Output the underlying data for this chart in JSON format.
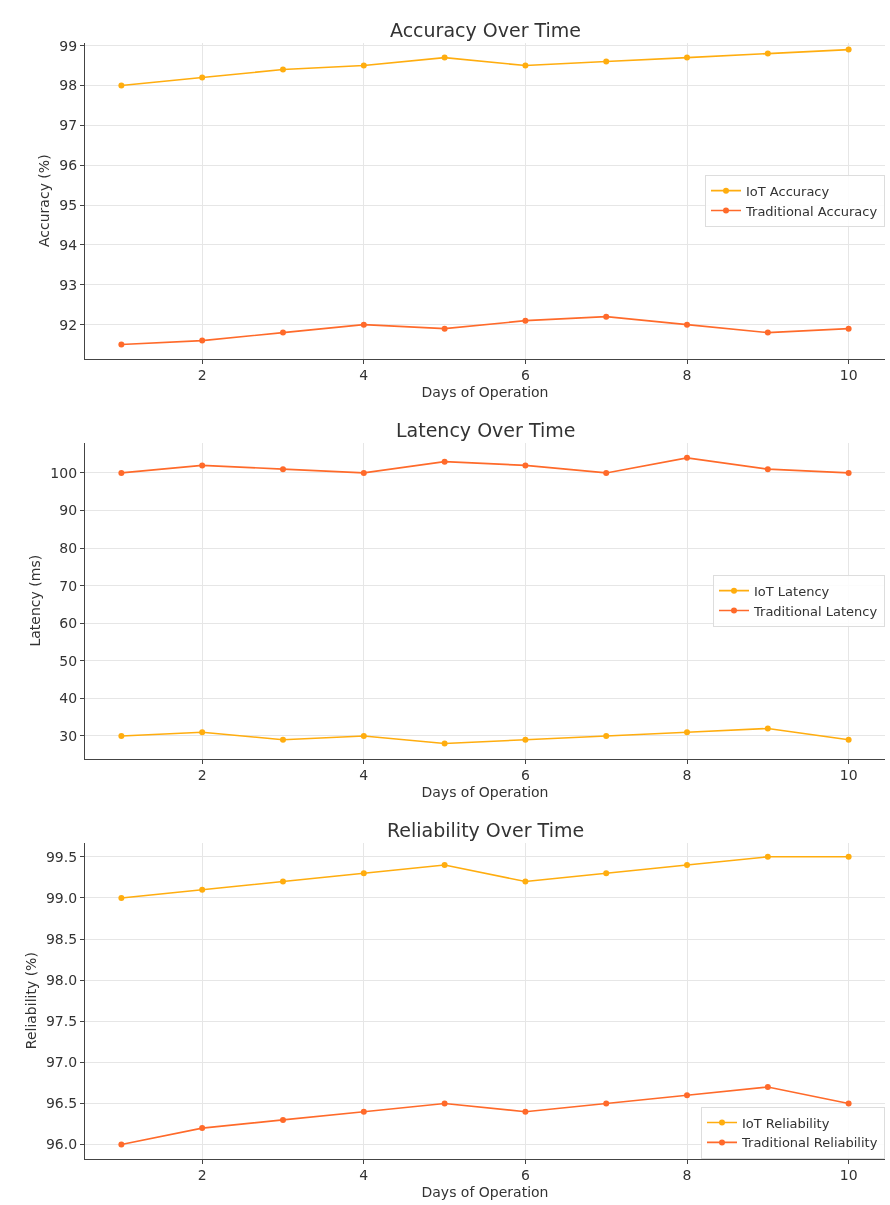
{
  "chart_data": [
    {
      "type": "line",
      "title": "Accuracy Over Time",
      "xlabel": "Days of Operation",
      "ylabel": "Accuracy (%)",
      "x": [
        1,
        2,
        3,
        4,
        5,
        6,
        7,
        8,
        9,
        10
      ],
      "xlim": [
        0.55,
        10.45
      ],
      "xticks": [
        2,
        4,
        6,
        8,
        10
      ],
      "ylim": [
        91.15,
        99.07
      ],
      "yticks": [
        92,
        93,
        94,
        95,
        96,
        97,
        98,
        99
      ],
      "grid": true,
      "legend": "right",
      "marker": "circle",
      "line_style": "solid",
      "series": [
        {
          "name": "IoT Accuracy",
          "color": "#ffad0f",
          "values": [
            98.0,
            98.2,
            98.4,
            98.5,
            98.7,
            98.5,
            98.6,
            98.7,
            98.8,
            98.9
          ]
        },
        {
          "name": "Traditional Accuracy",
          "color": "#ff6a2a",
          "values": [
            91.5,
            91.6,
            91.8,
            92.0,
            91.9,
            92.1,
            92.2,
            92.0,
            91.8,
            91.9
          ]
        }
      ]
    },
    {
      "type": "line",
      "title": "Latency Over Time",
      "xlabel": "Days of Operation",
      "ylabel": "Latency (ms)",
      "x": [
        1,
        2,
        3,
        4,
        5,
        6,
        7,
        8,
        9,
        10
      ],
      "xlim": [
        0.55,
        10.45
      ],
      "xticks": [
        2,
        4,
        6,
        8,
        10
      ],
      "ylim": [
        24,
        108
      ],
      "yticks": [
        30,
        40,
        50,
        60,
        70,
        80,
        90,
        100
      ],
      "grid": true,
      "legend": "right",
      "marker": "circle",
      "line_style": "solid",
      "series": [
        {
          "name": "IoT Latency",
          "color": "#ffad0f",
          "values": [
            30,
            31,
            29,
            30,
            28,
            29,
            30,
            31,
            32,
            29
          ]
        },
        {
          "name": "Traditional Latency",
          "color": "#ff6a2a",
          "values": [
            100,
            102,
            101,
            100,
            103,
            102,
            100,
            104,
            101,
            100
          ]
        }
      ]
    },
    {
      "type": "line",
      "title": "Reliability Over Time",
      "xlabel": "Days of Operation",
      "ylabel": "Reliability (%)",
      "x": [
        1,
        2,
        3,
        4,
        5,
        6,
        7,
        8,
        9,
        10
      ],
      "xlim": [
        0.55,
        10.45
      ],
      "xticks": [
        2,
        4,
        6,
        8,
        10
      ],
      "ylim": [
        95.83,
        99.67
      ],
      "yticks": [
        {
          "value": 96,
          "label": "96.0"
        },
        {
          "value": 96.5,
          "label": "96.5"
        },
        {
          "value": 97,
          "label": "97.0"
        },
        {
          "value": 97.5,
          "label": "97.5"
        },
        {
          "value": 98,
          "label": "98.0"
        },
        {
          "value": 98.5,
          "label": "98.5"
        },
        {
          "value": 99,
          "label": "99.0"
        },
        {
          "value": 99.5,
          "label": "99.5"
        }
      ],
      "grid": true,
      "legend": "bottom right",
      "marker": "circle",
      "line_style": "solid",
      "series": [
        {
          "name": "IoT Reliability",
          "color": "#ffad0f",
          "values": [
            99.0,
            99.1,
            99.2,
            99.3,
            99.4,
            99.2,
            99.3,
            99.4,
            99.5,
            99.5
          ]
        },
        {
          "name": "Traditional Reliability",
          "color": "#ff6a2a",
          "values": [
            96.0,
            96.2,
            96.3,
            96.4,
            96.5,
            96.4,
            96.5,
            96.6,
            96.7,
            96.5
          ]
        }
      ]
    }
  ]
}
